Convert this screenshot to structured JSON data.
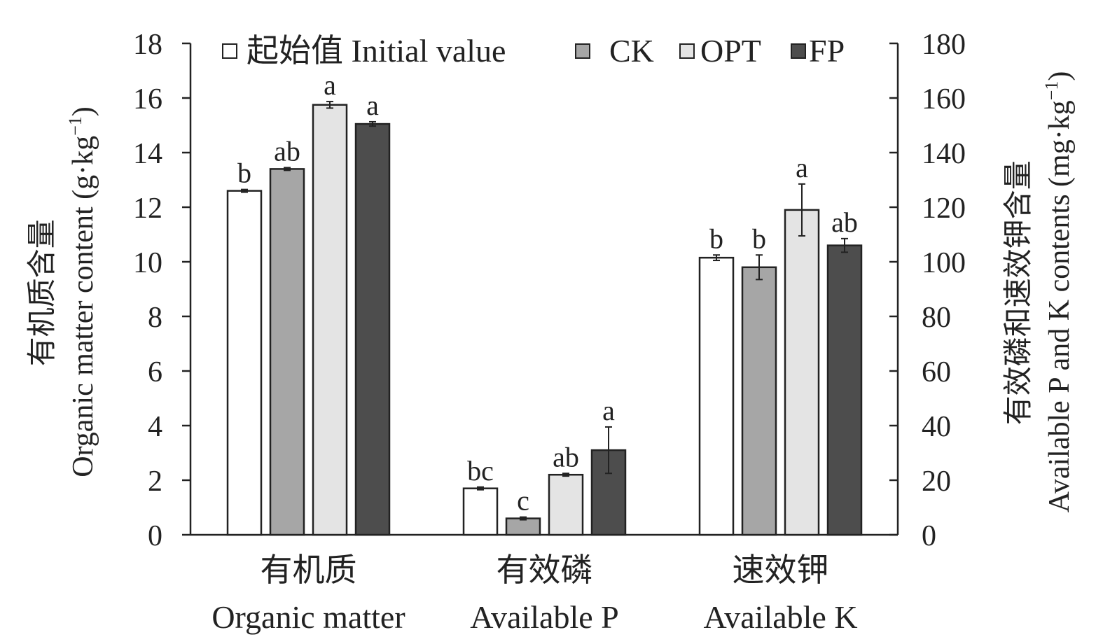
{
  "chart_data": {
    "type": "bar",
    "categories": [
      {
        "zh": "有机质",
        "en": "Organic matter"
      },
      {
        "zh": "有效磷",
        "en": "Available P"
      },
      {
        "zh": "速效钾",
        "en": "Available K"
      }
    ],
    "series": [
      {
        "name": "起始值 Initial value",
        "color": "#ffffff",
        "values": [
          12.6,
          1.7,
          10.15
        ],
        "errors": [
          0.05,
          0.05,
          0.1
        ],
        "labels": [
          "b",
          "bc",
          "b"
        ]
      },
      {
        "name": "CK",
        "color": "#a6a6a6",
        "values": [
          13.4,
          0.6,
          9.8
        ],
        "errors": [
          0.05,
          0.05,
          0.45
        ],
        "labels": [
          "ab",
          "c",
          "b"
        ]
      },
      {
        "name": "OPT",
        "color": "#e4e4e4",
        "values": [
          15.75,
          2.2,
          11.9
        ],
        "errors": [
          0.12,
          0.05,
          0.95
        ],
        "labels": [
          "a",
          "ab",
          "a"
        ]
      },
      {
        "name": "FP",
        "color": "#4d4d4d",
        "values": [
          15.05,
          3.1,
          10.6
        ],
        "errors": [
          0.08,
          0.85,
          0.25
        ],
        "labels": [
          "a",
          "a",
          "ab"
        ]
      }
    ],
    "y_left": {
      "title_zh": "有机质含量",
      "title_en": "Organic matter content (g·kg",
      "title_sup": "−1",
      "title_end": ")",
      "ylim": [
        0,
        18
      ],
      "ticks": [
        0,
        2,
        4,
        6,
        8,
        10,
        12,
        14,
        16,
        18
      ]
    },
    "y_right": {
      "title_zh": "有效磷和速效钾含量",
      "title_en": "Available P and K contents (mg·kg",
      "title_sup": "−1",
      "title_end": ")",
      "ylim": [
        0,
        180
      ],
      "ticks": [
        0,
        20,
        40,
        60,
        80,
        100,
        120,
        140,
        160,
        180
      ]
    },
    "legend_position": "top",
    "grid": false
  }
}
